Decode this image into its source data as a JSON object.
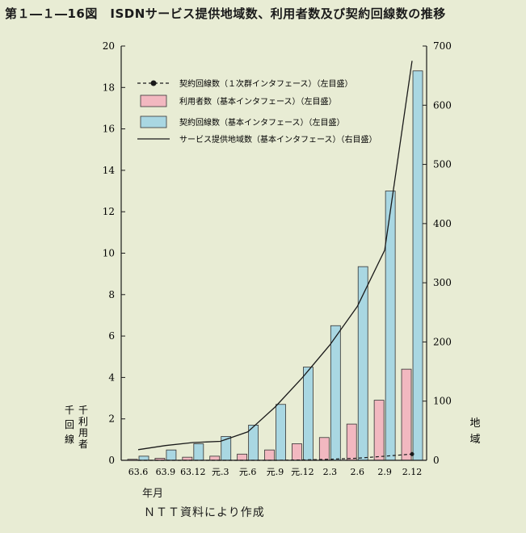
{
  "title": "第１―１―16図　ISDNサービス提供地域数、利用者数及び契約回線数の推移",
  "source": "ＮＴＴ資料により作成",
  "chart_data": {
    "type": "bar",
    "categories": [
      "63.6",
      "63.9",
      "63.12",
      "元.3",
      "元.6",
      "元.9",
      "元.12",
      "2.3",
      "2.6",
      "2.9",
      "2.12"
    ],
    "xlabel": "年月",
    "left_axis": {
      "ylim": [
        0,
        20
      ],
      "ticks": [
        0,
        2,
        4,
        6,
        8,
        10,
        12,
        14,
        16,
        18,
        20
      ],
      "label": [
        "千",
        "回",
        "線"
      ],
      "label2": [
        "千",
        "利",
        "用",
        "者"
      ]
    },
    "right_axis": {
      "ylim": [
        0,
        700
      ],
      "ticks": [
        0,
        100,
        200,
        300,
        400,
        500,
        600,
        700
      ],
      "label": [
        "地",
        "域"
      ]
    },
    "legend_position": "top-left",
    "series": [
      {
        "name": "契約回線数（１次群インタフェース）（左目盛）",
        "kind": "line-dashed",
        "axis": "left",
        "color": "#1a1a1a",
        "values": [
          0,
          0,
          0,
          0,
          0,
          0,
          0.02,
          0.05,
          0.1,
          0.2,
          0.3
        ]
      },
      {
        "name": "利用者数（基本インタフェース）（左目盛）",
        "kind": "bar",
        "axis": "left",
        "color": "#f2b8c0",
        "values": [
          0.05,
          0.1,
          0.15,
          0.2,
          0.3,
          0.5,
          0.8,
          1.1,
          1.75,
          2.9,
          4.4
        ]
      },
      {
        "name": "契約回線数（基本インタフェース）（左目盛）",
        "kind": "bar",
        "axis": "left",
        "color": "#a9d7e2",
        "values": [
          0.2,
          0.5,
          0.8,
          1.15,
          1.7,
          2.7,
          4.5,
          6.5,
          9.35,
          13.0,
          18.8
        ]
      },
      {
        "name": "サービス提供地域数（基本インタフェース）（右目盛）",
        "kind": "line",
        "axis": "right",
        "color": "#1a1a1a",
        "values": [
          18,
          25,
          30,
          32,
          48,
          90,
          140,
          195,
          260,
          355,
          675
        ]
      }
    ]
  }
}
